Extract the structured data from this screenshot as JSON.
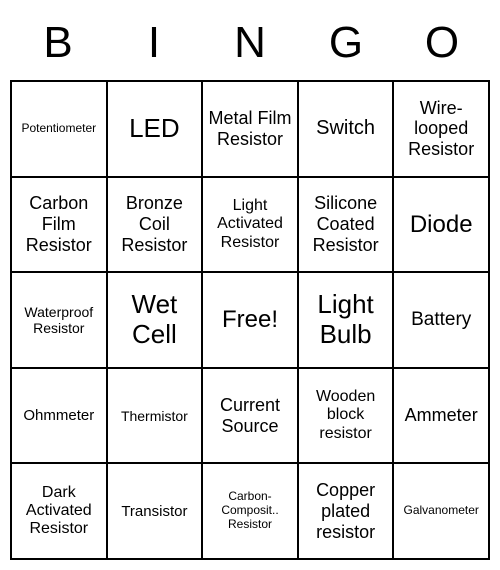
{
  "header": {
    "letters": [
      "B",
      "I",
      "N",
      "G",
      "O"
    ],
    "fontsize": 44,
    "color": "#000000"
  },
  "grid": {
    "rows": 5,
    "cols": 5,
    "border_color": "#000000",
    "background_color": "#ffffff",
    "cell_text_color": "#000000",
    "cells": [
      [
        {
          "text": "Potentiometer",
          "fontsize": 12
        },
        {
          "text": "LED",
          "fontsize": 26
        },
        {
          "text": "Metal Film Resistor",
          "fontsize": 18
        },
        {
          "text": "Switch",
          "fontsize": 20
        },
        {
          "text": "Wire-looped Resistor",
          "fontsize": 18
        }
      ],
      [
        {
          "text": "Carbon Film Resistor",
          "fontsize": 18
        },
        {
          "text": "Bronze Coil Resistor",
          "fontsize": 18
        },
        {
          "text": "Light Activated Resistor",
          "fontsize": 16
        },
        {
          "text": "Silicone Coated Resistor",
          "fontsize": 18
        },
        {
          "text": "Diode",
          "fontsize": 24
        }
      ],
      [
        {
          "text": "Waterproof Resistor",
          "fontsize": 14
        },
        {
          "text": "Wet Cell",
          "fontsize": 26
        },
        {
          "text": "Free!",
          "fontsize": 24
        },
        {
          "text": "Light Bulb",
          "fontsize": 26
        },
        {
          "text": "Battery",
          "fontsize": 19
        }
      ],
      [
        {
          "text": "Ohmmeter",
          "fontsize": 15
        },
        {
          "text": "Thermistor",
          "fontsize": 14
        },
        {
          "text": "Current Source",
          "fontsize": 18
        },
        {
          "text": "Wooden block resistor",
          "fontsize": 16
        },
        {
          "text": "Ammeter",
          "fontsize": 18
        }
      ],
      [
        {
          "text": "Dark Activated Resistor",
          "fontsize": 16
        },
        {
          "text": "Transistor",
          "fontsize": 15
        },
        {
          "text": "Carbon-Composit.. Resistor",
          "fontsize": 12
        },
        {
          "text": "Copper plated resistor",
          "fontsize": 18
        },
        {
          "text": "Galvanometer",
          "fontsize": 12
        }
      ]
    ]
  }
}
